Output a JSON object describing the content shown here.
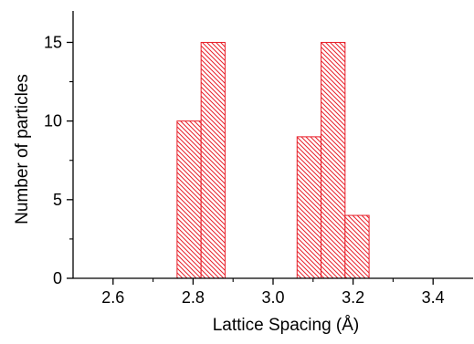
{
  "chart_data": {
    "type": "bar",
    "title": "",
    "xlabel": "Lattice Spacing (Å)",
    "ylabel": "Number of particles",
    "xlim": [
      2.5,
      3.5
    ],
    "ylim": [
      0,
      17
    ],
    "x_ticks": [
      2.6,
      2.8,
      3.0,
      3.2,
      3.4
    ],
    "x_tick_labels": [
      "2.6",
      "2.8",
      "3.0",
      "3.2",
      "3.4"
    ],
    "y_ticks": [
      0,
      5,
      10,
      15
    ],
    "y_tick_labels": [
      "0",
      "5",
      "10",
      "15"
    ],
    "bin_width": 0.06,
    "bins": [
      {
        "start": 2.76,
        "end": 2.82,
        "count": 10
      },
      {
        "start": 2.82,
        "end": 2.88,
        "count": 15
      },
      {
        "start": 3.06,
        "end": 3.12,
        "count": 9
      },
      {
        "start": 3.12,
        "end": 3.18,
        "count": 15
      },
      {
        "start": 3.18,
        "end": 3.24,
        "count": 4
      }
    ],
    "bar_color": "#e8202a",
    "fill_pattern": "diagonal-hatch",
    "grid": false,
    "legend": "none"
  }
}
